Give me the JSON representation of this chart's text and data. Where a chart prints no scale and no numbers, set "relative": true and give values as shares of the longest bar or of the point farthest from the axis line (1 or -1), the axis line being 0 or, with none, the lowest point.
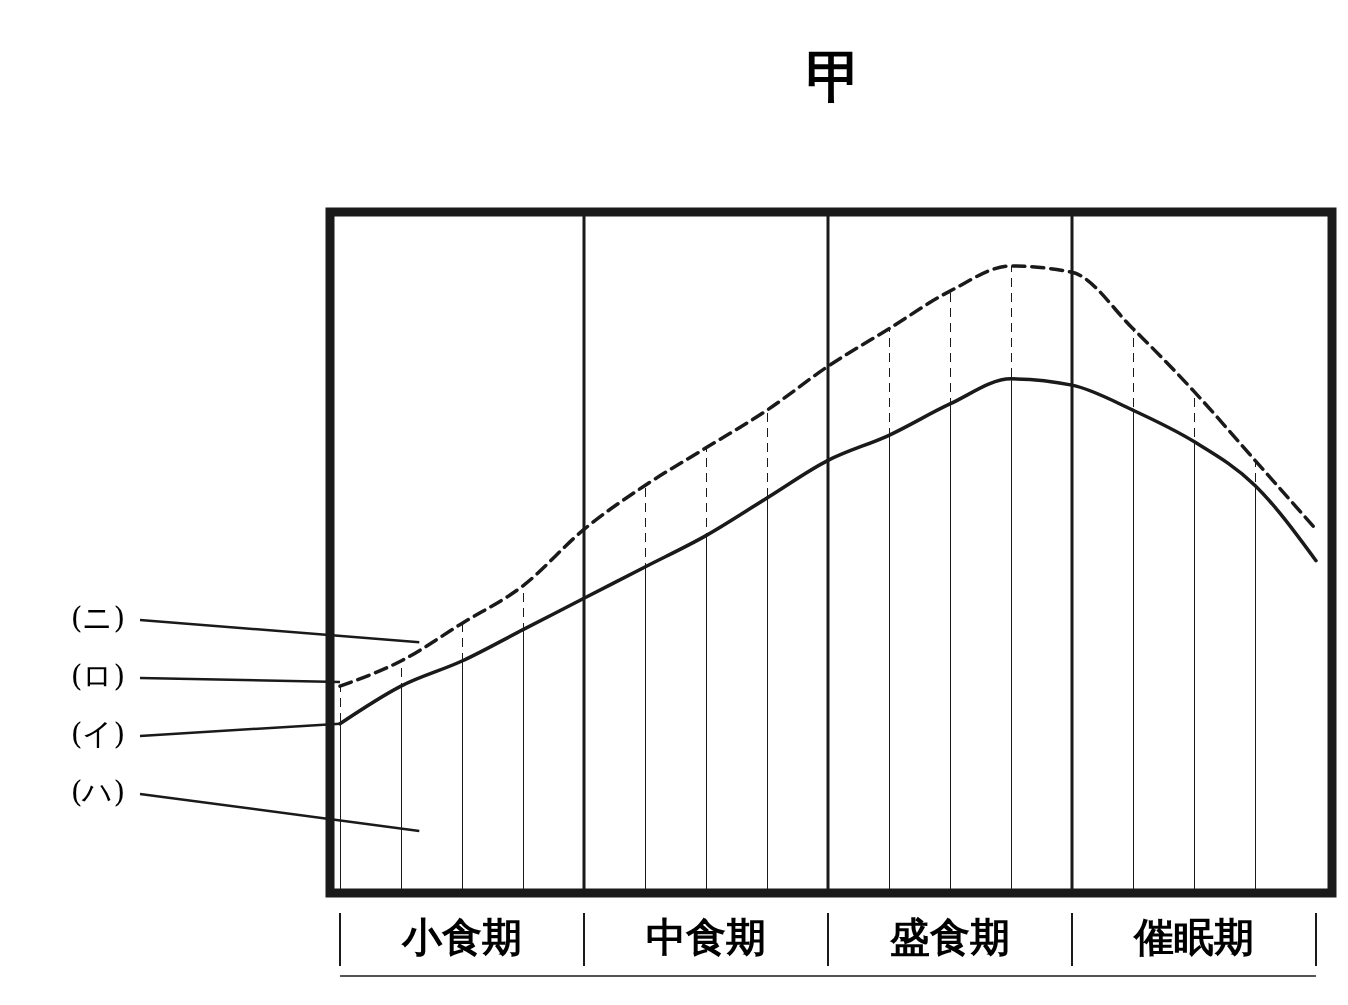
{
  "chart_data": {
    "type": "line",
    "title": "甲",
    "relative": true,
    "categories": [
      null,
      null,
      "小食期",
      null,
      null,
      null,
      "中食期",
      null,
      null,
      null,
      "盛食期",
      null,
      null,
      null,
      "催眠期",
      null,
      null
    ],
    "series": [
      {
        "name": "(イ)",
        "type": "area",
        "color": "#1a1a1a",
        "line_style": "solid",
        "values": [
          0.27,
          0.33,
          0.37,
          0.42,
          0.47,
          0.52,
          0.57,
          0.63,
          0.69,
          0.73,
          0.78,
          0.82,
          0.81,
          0.77,
          0.72,
          0.65,
          0.53
        ]
      },
      {
        "name": "(ロ)",
        "type": "area",
        "color": "#1a1a1a",
        "line_style": "dashed",
        "values": [
          0.33,
          0.37,
          0.43,
          0.49,
          0.58,
          0.65,
          0.71,
          0.77,
          0.84,
          0.9,
          0.96,
          1,
          0.99,
          0.9,
          0.8,
          0.69,
          0.58
        ]
      }
    ],
    "annotations": [
      "(ニ)",
      "(ハ)"
    ],
    "grid": "x"
  }
}
